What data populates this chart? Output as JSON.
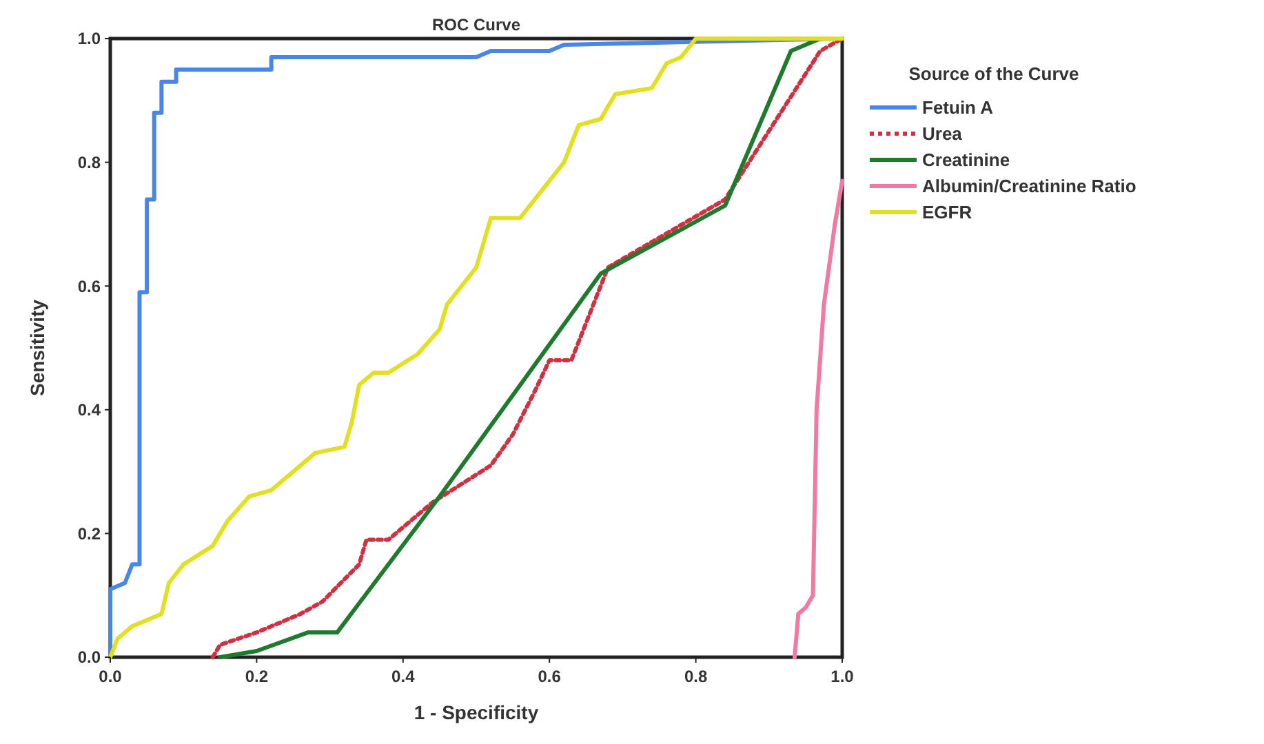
{
  "chart_data": {
    "type": "line",
    "title": "ROC Curve",
    "xlabel": "1 - Specificity",
    "ylabel": "Sensitivity",
    "legend_title": "Source of the Curve",
    "legend": "right",
    "marker": "none",
    "xlim": [
      0,
      1
    ],
    "ylim": [
      0,
      1
    ],
    "xticks": [
      {
        "value": 0,
        "label": "0.0"
      },
      0.2,
      0.4,
      0.6,
      0.8,
      {
        "value": 1,
        "label": "1.0"
      }
    ],
    "yticks": [
      {
        "value": 0,
        "label": "0.0"
      },
      0.2,
      0.4,
      0.6,
      0.8,
      {
        "value": 1,
        "label": "1.0"
      }
    ],
    "series": [
      {
        "name": "Fetuin A",
        "color": "#4a86e8",
        "line_style": "solid",
        "x": [
          0,
          0,
          0.02,
          0.03,
          0.04,
          0.04,
          0.05,
          0.05,
          0.06,
          0.06,
          0.07,
          0.07,
          0.09,
          0.09,
          0.22,
          0.22,
          0.5,
          0.52,
          0.6,
          0.62,
          1
        ],
        "values": [
          0,
          0.11,
          0.12,
          0.15,
          0.15,
          0.59,
          0.59,
          0.74,
          0.74,
          0.88,
          0.88,
          0.93,
          0.93,
          0.95,
          0.95,
          0.97,
          0.97,
          0.98,
          0.98,
          0.99,
          1
        ]
      },
      {
        "name": "Urea",
        "color": "#d03040",
        "line_style": "dotted",
        "x": [
          0.14,
          0.15,
          0.2,
          0.26,
          0.29,
          0.34,
          0.35,
          0.38,
          0.44,
          0.48,
          0.52,
          0.55,
          0.58,
          0.6,
          0.63,
          0.67,
          0.68,
          0.84,
          0.97,
          1
        ],
        "values": [
          0,
          0.02,
          0.04,
          0.07,
          0.09,
          0.15,
          0.19,
          0.19,
          0.25,
          0.28,
          0.31,
          0.36,
          0.43,
          0.48,
          0.48,
          0.6,
          0.63,
          0.74,
          0.98,
          1
        ]
      },
      {
        "name": "Creatinine",
        "color": "#1e7b2e",
        "line_style": "solid",
        "x": [
          0.15,
          0.2,
          0.27,
          0.31,
          0.45,
          0.67,
          0.84,
          0.93,
          0.97,
          1
        ],
        "values": [
          0,
          0.01,
          0.04,
          0.04,
          0.26,
          0.62,
          0.73,
          0.98,
          1,
          1
        ]
      },
      {
        "name": "Albumin/Creatinine Ratio",
        "color": "#f07aa0",
        "line_style": "solid",
        "x": [
          0.935,
          0.94,
          0.95,
          0.96,
          0.965,
          0.975,
          0.99,
          1
        ],
        "values": [
          0,
          0.07,
          0.08,
          0.1,
          0.4,
          0.57,
          0.7,
          0.77
        ]
      },
      {
        "name": "EGFR",
        "color": "#e0e020",
        "line_style": "solid",
        "x": [
          0,
          0.01,
          0.03,
          0.07,
          0.08,
          0.1,
          0.14,
          0.16,
          0.19,
          0.22,
          0.25,
          0.28,
          0.32,
          0.33,
          0.34,
          0.36,
          0.38,
          0.42,
          0.45,
          0.46,
          0.48,
          0.5,
          0.51,
          0.52,
          0.56,
          0.58,
          0.62,
          0.64,
          0.67,
          0.69,
          0.74,
          0.76,
          0.78,
          0.8,
          1
        ],
        "values": [
          0,
          0.03,
          0.05,
          0.07,
          0.12,
          0.15,
          0.18,
          0.22,
          0.26,
          0.27,
          0.3,
          0.33,
          0.34,
          0.38,
          0.44,
          0.46,
          0.46,
          0.49,
          0.53,
          0.57,
          0.6,
          0.63,
          0.67,
          0.71,
          0.71,
          0.74,
          0.8,
          0.86,
          0.87,
          0.91,
          0.92,
          0.96,
          0.97,
          1,
          1
        ]
      }
    ]
  }
}
